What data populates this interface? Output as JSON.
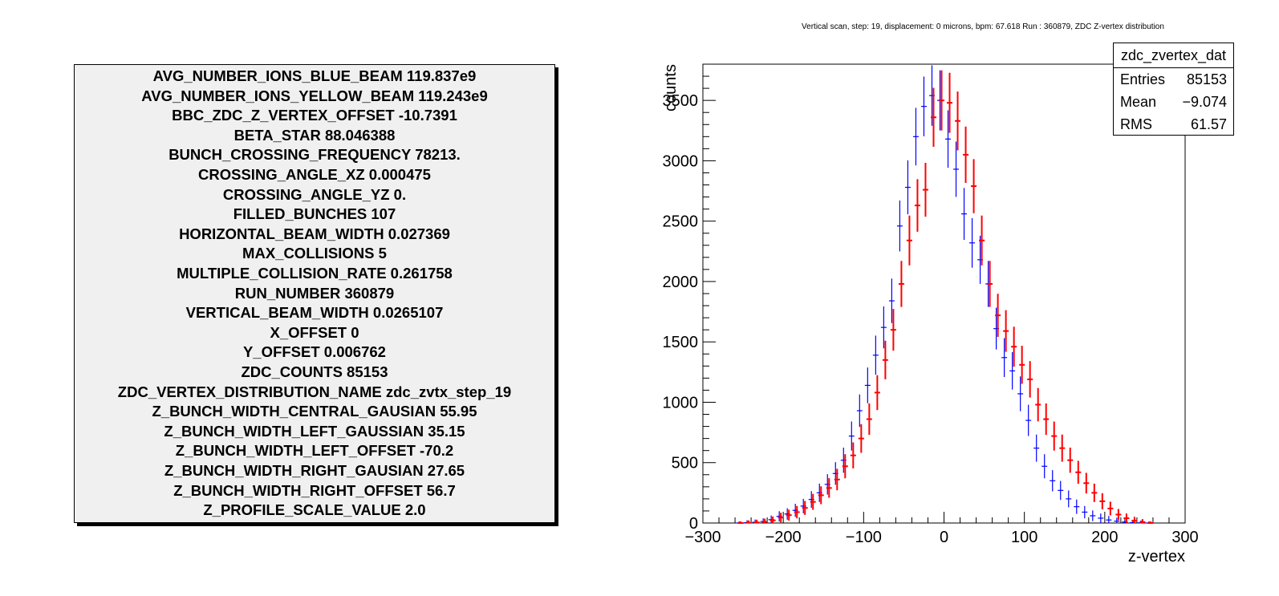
{
  "params": [
    "AVG_NUMBER_IONS_BLUE_BEAM 119.837e9",
    "AVG_NUMBER_IONS_YELLOW_BEAM 119.243e9",
    "BBC_ZDC_Z_VERTEX_OFFSET -10.7391",
    "BETA_STAR 88.046388",
    "BUNCH_CROSSING_FREQUENCY 78213.",
    "CROSSING_ANGLE_XZ 0.000475",
    "CROSSING_ANGLE_YZ 0.",
    "FILLED_BUNCHES 107",
    "HORIZONTAL_BEAM_WIDTH 0.027369",
    "MAX_COLLISIONS 5",
    "MULTIPLE_COLLISION_RATE 0.261758",
    "RUN_NUMBER 360879",
    "VERTICAL_BEAM_WIDTH 0.0265107",
    "X_OFFSET 0",
    "Y_OFFSET 0.006762",
    "ZDC_COUNTS 85153",
    "ZDC_VERTEX_DISTRIBUTION_NAME zdc_zvtx_step_19",
    "Z_BUNCH_WIDTH_CENTRAL_GAUSIAN 55.95",
    "Z_BUNCH_WIDTH_LEFT_GAUSSIAN 35.15",
    "Z_BUNCH_WIDTH_LEFT_OFFSET -70.2",
    "Z_BUNCH_WIDTH_RIGHT_GAUSIAN 27.65",
    "Z_BUNCH_WIDTH_RIGHT_OFFSET 56.7",
    "Z_PROFILE_SCALE_VALUE 2.0"
  ],
  "stats": {
    "title": "zdc_zvertex_dat",
    "rows": [
      {
        "label": "Entries",
        "value": "85153"
      },
      {
        "label": "Mean",
        "value": "−9.074"
      },
      {
        "label": "RMS",
        "value": "61.57"
      }
    ]
  },
  "chart_data": {
    "type": "scatter",
    "title": "Vertical scan, step: 19, displacement: 0 microns, bpm: 67.618 Run : 360879, ZDC Z-vertex distribution",
    "xlabel": "z-vertex",
    "ylabel": "counts",
    "xlim": [
      -300,
      300
    ],
    "ylim": [
      0,
      3800
    ],
    "xticks": [
      -300,
      -200,
      -100,
      0,
      100,
      200,
      300
    ],
    "xtick_labels": [
      "−300",
      "−200",
      "−100",
      "0",
      "100",
      "200",
      "300"
    ],
    "yticks": [
      0,
      500,
      1000,
      1500,
      2000,
      2500,
      3000,
      3500
    ],
    "ytick_labels": [
      "0",
      "500",
      "1000",
      "1500",
      "2000",
      "2500",
      "3000",
      "3500"
    ],
    "series": [
      {
        "color": "#0000ff",
        "x": [
          -255,
          -245,
          -235,
          -225,
          -215,
          -205,
          -195,
          -185,
          -175,
          -165,
          -155,
          -145,
          -135,
          -125,
          -115,
          -105,
          -95,
          -85,
          -75,
          -65,
          -55,
          -45,
          -35,
          -25,
          -15,
          -5,
          5,
          15,
          25,
          35,
          45,
          55,
          65,
          75,
          85,
          95,
          105,
          115,
          125,
          135,
          145,
          155,
          165,
          175,
          185,
          195,
          205,
          215,
          225,
          235,
          245,
          255
        ],
        "y": [
          0,
          3,
          6,
          12,
          28,
          55,
          75,
          105,
          140,
          195,
          250,
          320,
          410,
          520,
          720,
          930,
          1140,
          1390,
          1620,
          1840,
          2460,
          2780,
          3200,
          3450,
          3540,
          3500,
          3180,
          2930,
          2560,
          2320,
          2180,
          1980,
          1610,
          1370,
          1260,
          1070,
          850,
          620,
          470,
          350,
          270,
          200,
          135,
          90,
          60,
          40,
          25,
          15,
          8,
          4,
          2,
          0
        ]
      },
      {
        "color": "#ff0000",
        "x": [
          -253,
          -243,
          -233,
          -223,
          -213,
          -203,
          -193,
          -183,
          -173,
          -163,
          -153,
          -143,
          -133,
          -123,
          -113,
          -103,
          -93,
          -83,
          -73,
          -63,
          -53,
          -43,
          -33,
          -23,
          -13,
          -3,
          7,
          17,
          27,
          37,
          47,
          57,
          67,
          77,
          87,
          97,
          107,
          117,
          127,
          137,
          147,
          157,
          167,
          177,
          187,
          197,
          207,
          217,
          227,
          237,
          247,
          257
        ],
        "y": [
          0,
          2,
          5,
          10,
          22,
          45,
          65,
          90,
          125,
          175,
          230,
          290,
          360,
          470,
          560,
          700,
          860,
          1080,
          1350,
          1600,
          1980,
          2340,
          2630,
          2760,
          3360,
          3500,
          3480,
          3330,
          3050,
          2790,
          2340,
          1980,
          1720,
          1590,
          1460,
          1310,
          1190,
          980,
          860,
          720,
          620,
          520,
          420,
          330,
          250,
          180,
          120,
          70,
          40,
          20,
          8,
          0
        ]
      }
    ]
  }
}
